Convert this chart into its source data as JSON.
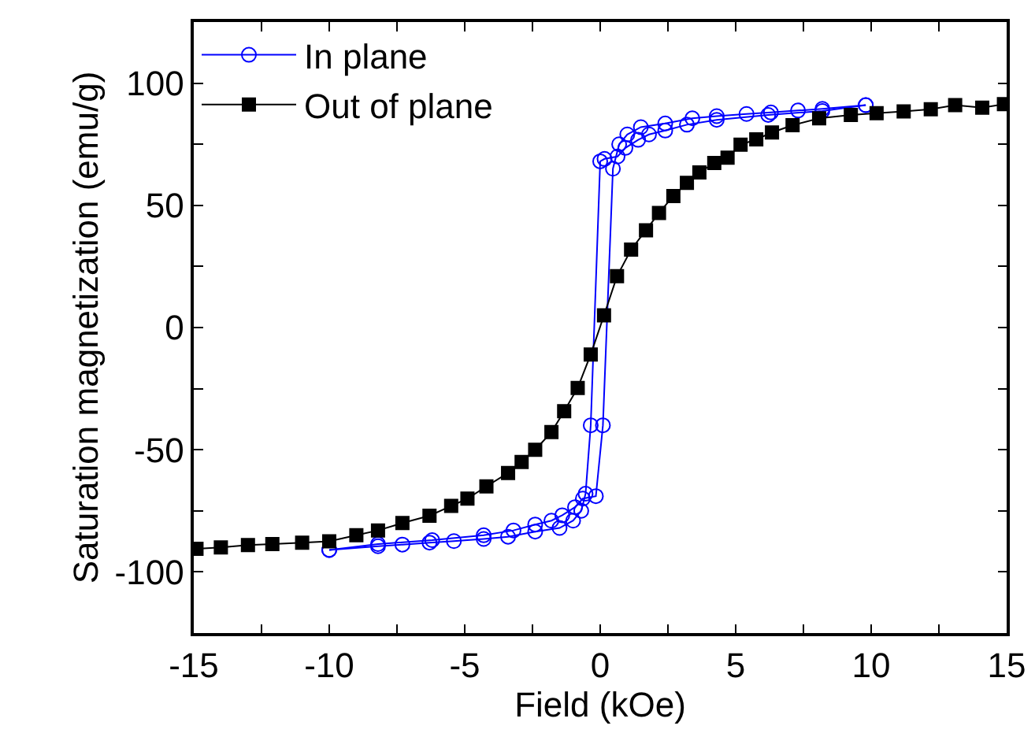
{
  "chart_data": {
    "type": "line",
    "xlabel": "Field (kOe)",
    "ylabel": "Saturation magnetization (emu/g)",
    "xlim": [
      -15,
      15
    ],
    "ylim": [
      -125,
      125
    ],
    "xticks": [
      -15,
      {
        "value": -12.5,
        "label": null
      },
      -10,
      {
        "value": -7.5,
        "label": null
      },
      -5,
      {
        "value": -2.5,
        "label": null
      },
      0,
      {
        "value": 2.5,
        "label": null
      },
      5,
      {
        "value": 7.5,
        "label": null
      },
      10,
      {
        "value": 12.5,
        "label": null
      },
      15
    ],
    "yticks": [
      {
        "value": -125,
        "label": null
      },
      -100,
      {
        "value": -75,
        "label": null
      },
      -50,
      {
        "value": -25,
        "label": null
      },
      0,
      {
        "value": 25,
        "label": null
      },
      50,
      {
        "value": 75,
        "label": null
      },
      100,
      {
        "value": 125,
        "label": null
      }
    ],
    "grid": false,
    "legend": "top left",
    "line_style": "solid",
    "series": [
      {
        "name": "In plane",
        "color": "#0000ff",
        "marker": "circle",
        "x": [
          -10,
          -8.2,
          -6.2,
          -4.3,
          -3.2,
          -2.4,
          -1.8,
          -1.4,
          -0.93,
          -0.64,
          -0.16,
          0.1,
          0.47,
          0.7,
          1.0,
          1.5,
          2.4,
          3.4,
          4.3,
          5.4,
          6.3,
          7.3,
          8.2,
          9.8
        ],
        "values": [
          -91,
          -88.6,
          -87,
          -85,
          -83,
          -80.6,
          -79,
          -76.8,
          -73.5,
          -70,
          -69,
          -40,
          65,
          75,
          79,
          82,
          83.5,
          85.6,
          86.5,
          87.4,
          88,
          88.8,
          89.5,
          91
        ]
      },
      {
        "color": "#0000ff",
        "marker": "circle",
        "x": [
          9.8,
          8.2,
          6.2,
          4.3,
          3.2,
          2.4,
          1.8,
          1.4,
          0.93,
          0.64,
          0.16,
          0,
          -0.35,
          -0.54,
          -0.7,
          -1.0,
          -1.5,
          -2.4,
          -3.4,
          -4.3,
          -5.4,
          -6.3,
          -7.3,
          -8.2,
          -10
        ],
        "values": [
          91,
          88.6,
          87,
          85,
          83,
          80.6,
          79,
          76.8,
          73.5,
          70,
          69,
          68,
          -40,
          -68,
          -75,
          -79,
          -82,
          -83.5,
          -85.6,
          -86.5,
          -87.4,
          -88,
          -88.8,
          -89.5,
          -91
        ]
      },
      {
        "name": "Out of plane",
        "color": "#000000",
        "marker": "square",
        "x": [
          -14.9,
          -14,
          -13,
          -12.1,
          -11,
          -10,
          -9,
          -8.2,
          -7.3,
          -6.3,
          -5.5,
          -4.9,
          -4.2,
          -3.4,
          -2.9,
          -2.4,
          -1.8,
          -1.33,
          -0.83,
          -0.35,
          0.14,
          0.62,
          1.14,
          1.69,
          2.17,
          2.7,
          3.2,
          3.66,
          4.21,
          4.7,
          5.18,
          5.76,
          6.34,
          7.1,
          8.08,
          9.25,
          10.2,
          11.2,
          12.2,
          13.1,
          14.1,
          14.9
        ],
        "values": [
          -90.5,
          -90,
          -89,
          -88.6,
          -88,
          -87.5,
          -85,
          -83,
          -80,
          -77,
          -73,
          -70,
          -65,
          -59.5,
          -55,
          -50,
          -42.8,
          -34.2,
          -24.7,
          -11,
          5,
          21,
          31.9,
          39.8,
          46.9,
          53.8,
          59.2,
          63.5,
          67.3,
          69.5,
          74.8,
          77,
          79.8,
          82.8,
          85.6,
          87,
          87.7,
          88.4,
          89.3,
          91,
          90,
          91.4
        ]
      }
    ]
  }
}
